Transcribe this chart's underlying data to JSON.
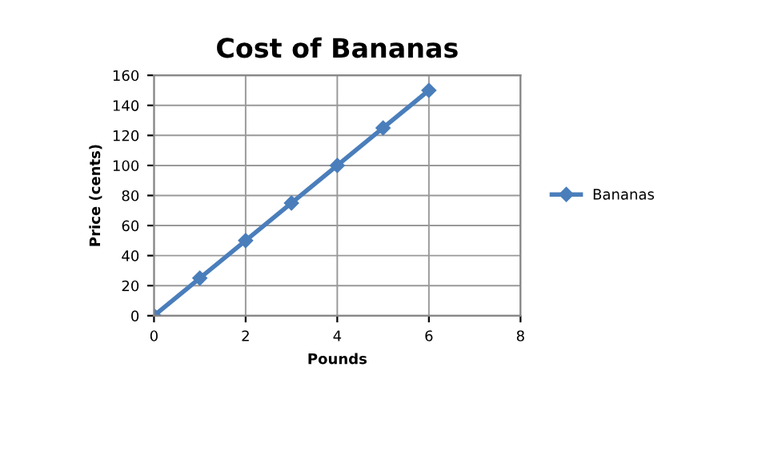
{
  "chart_data": {
    "type": "line",
    "title": "Cost of Bananas",
    "xlabel": "Pounds",
    "ylabel": "Price (cents)",
    "series": [
      {
        "name": "Bananas",
        "color": "#4a7ebb",
        "x": [
          0,
          1,
          2,
          3,
          4,
          5,
          6
        ],
        "values": [
          0,
          25,
          50,
          75,
          100,
          125,
          150
        ]
      }
    ],
    "xlim": [
      0,
      8
    ],
    "xticks": [
      0,
      2,
      4,
      6,
      8
    ],
    "ylim": [
      0,
      160
    ],
    "yticks": [
      0,
      20,
      40,
      60,
      80,
      100,
      120,
      140,
      160
    ],
    "grid": true,
    "legend": "right",
    "marker": "diamond",
    "line_style": "solid"
  }
}
